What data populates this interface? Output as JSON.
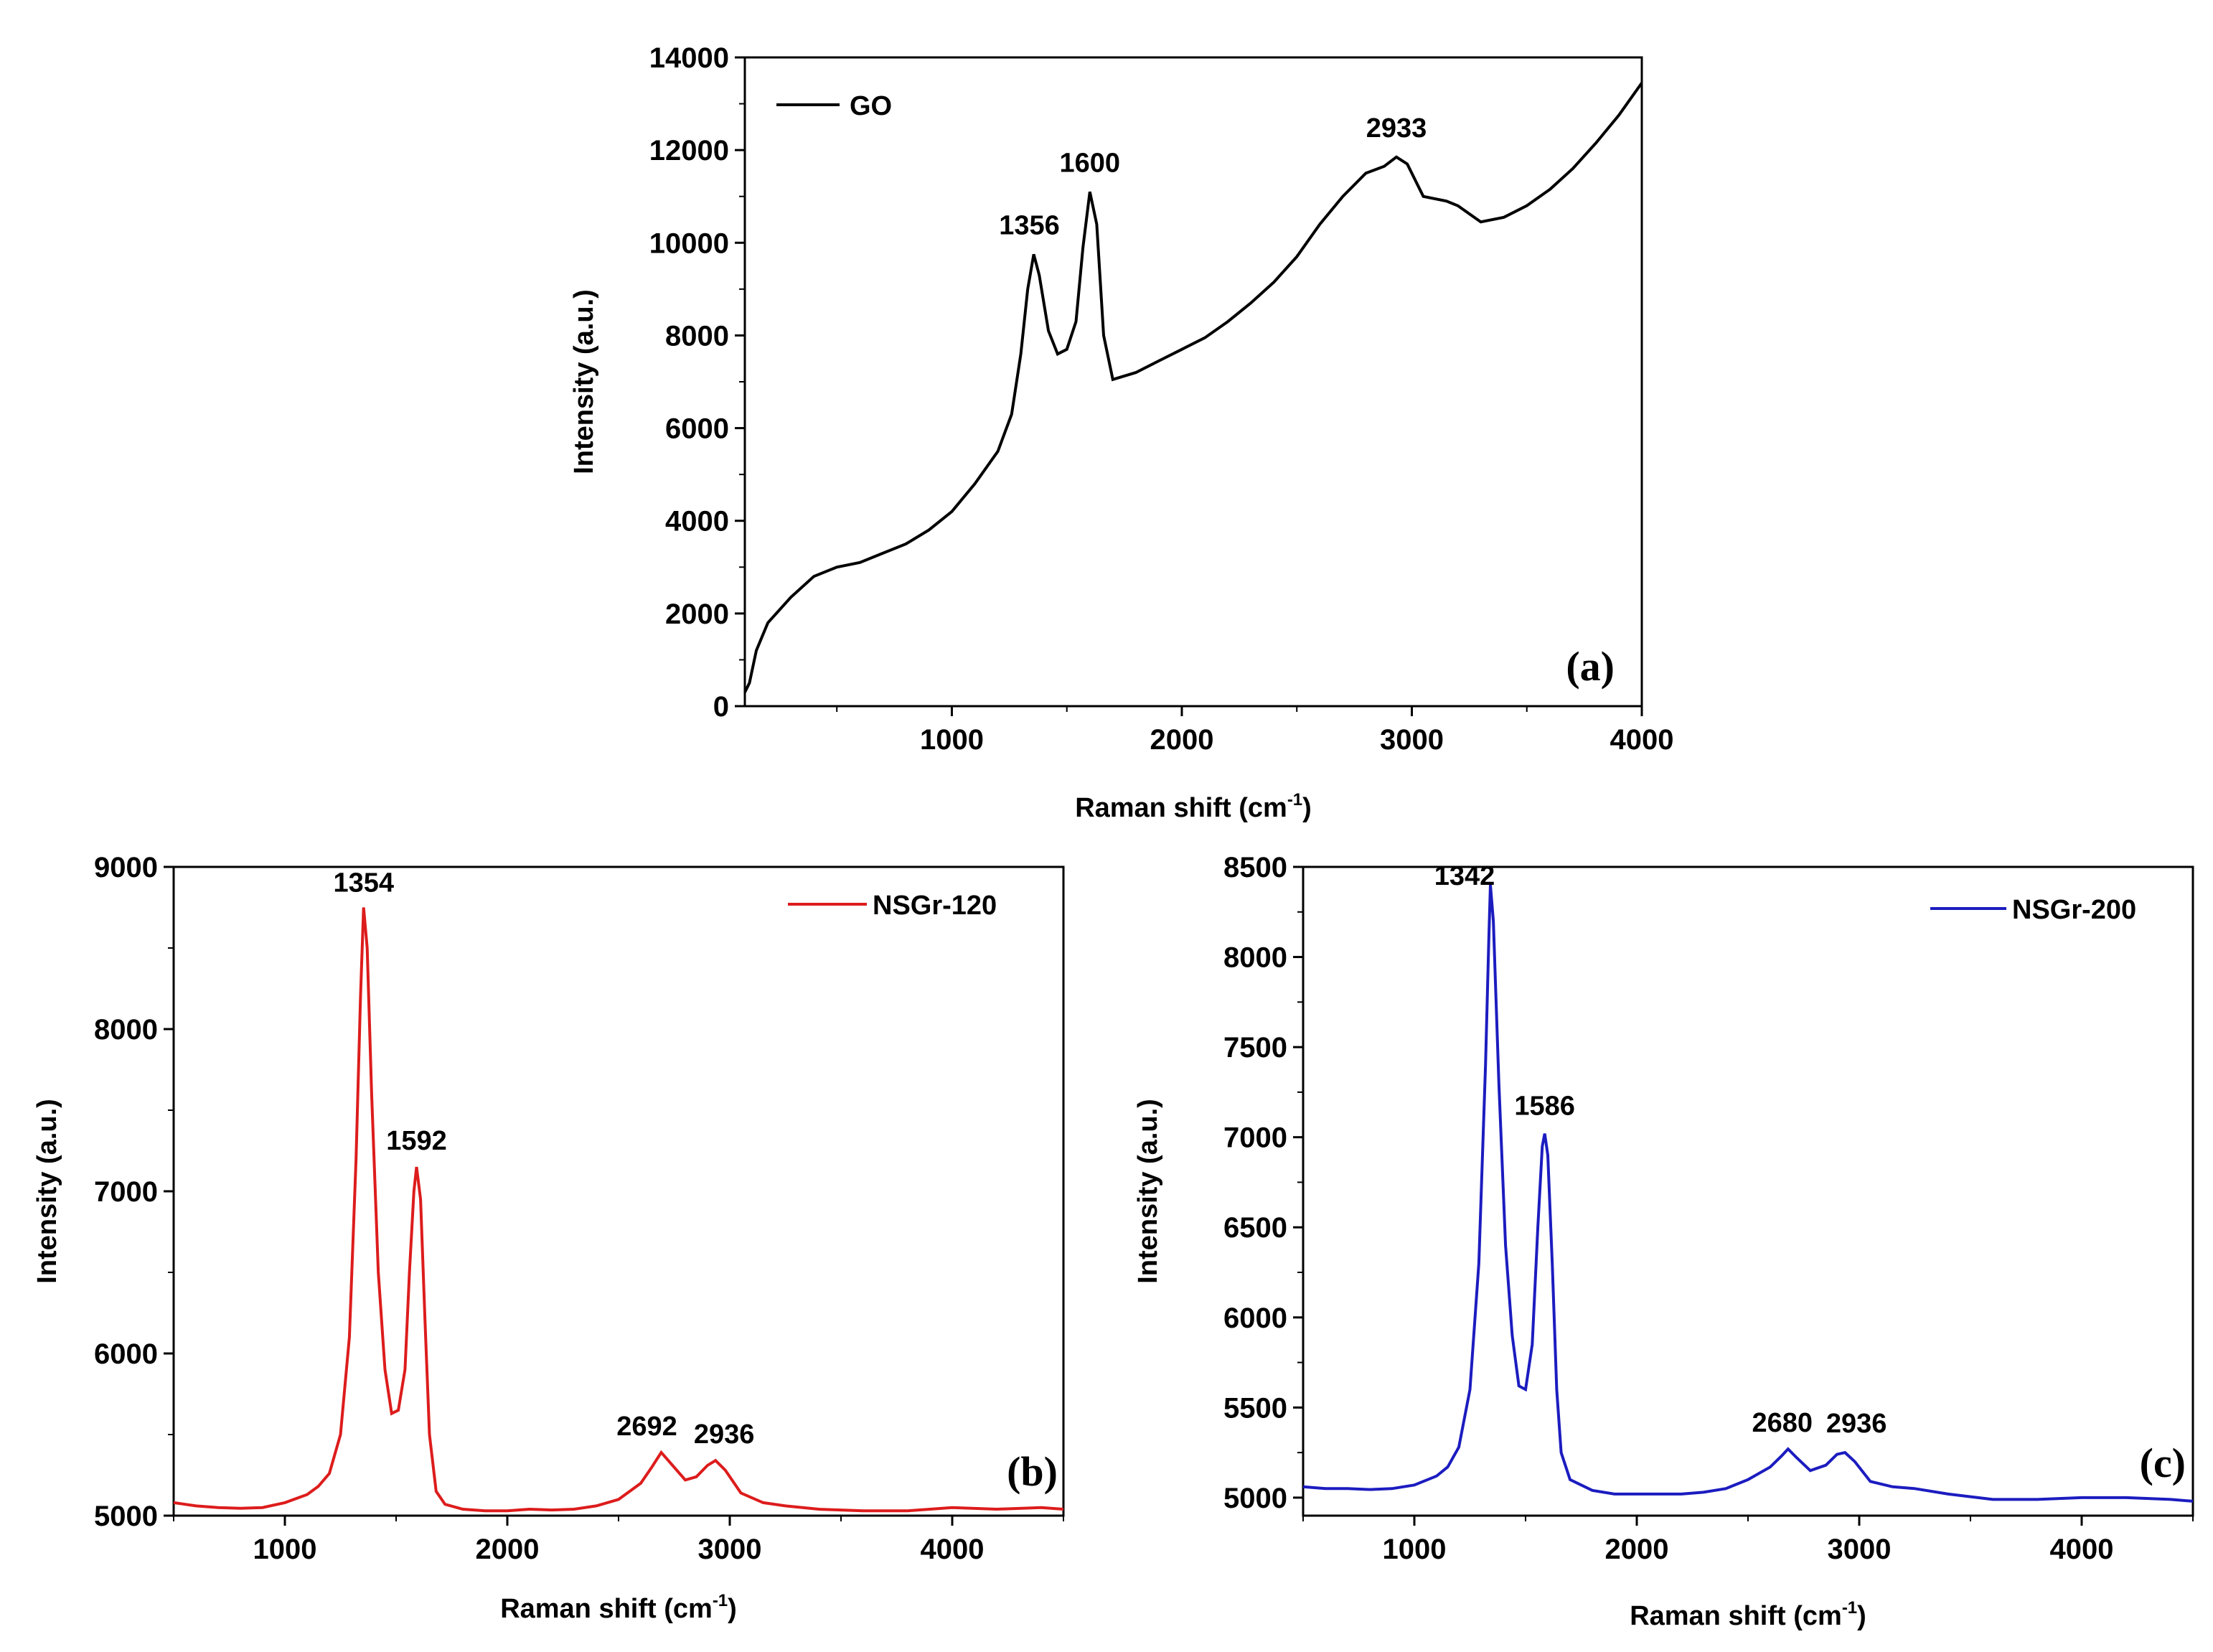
{
  "chart_data": [
    {
      "id": "a",
      "type": "line",
      "panel_label": "(a)",
      "title": "",
      "xlabel": "Raman shift (cm",
      "xlabel_sup": "-1",
      "xlabel_end": ")",
      "ylabel": "Intensity (a.u.)",
      "xlim": [
        100,
        4000
      ],
      "ylim": [
        0,
        14000
      ],
      "xticks": [
        1000,
        2000,
        3000,
        4000
      ],
      "yticks": [
        0,
        2000,
        4000,
        6000,
        8000,
        10000,
        12000,
        14000
      ],
      "legend_position": "top-left",
      "series": [
        {
          "name": "GO",
          "color": "#000000",
          "points": [
            [
              100,
              300
            ],
            [
              120,
              500
            ],
            [
              150,
              1200
            ],
            [
              200,
              1800
            ],
            [
              300,
              2350
            ],
            [
              400,
              2800
            ],
            [
              500,
              3000
            ],
            [
              600,
              3100
            ],
            [
              700,
              3300
            ],
            [
              800,
              3500
            ],
            [
              900,
              3800
            ],
            [
              1000,
              4200
            ],
            [
              1100,
              4800
            ],
            [
              1200,
              5500
            ],
            [
              1260,
              6300
            ],
            [
              1300,
              7600
            ],
            [
              1330,
              9000
            ],
            [
              1356,
              9750
            ],
            [
              1380,
              9300
            ],
            [
              1420,
              8100
            ],
            [
              1460,
              7600
            ],
            [
              1500,
              7700
            ],
            [
              1540,
              8300
            ],
            [
              1570,
              9900
            ],
            [
              1600,
              11100
            ],
            [
              1630,
              10400
            ],
            [
              1660,
              8000
            ],
            [
              1700,
              7050
            ],
            [
              1800,
              7200
            ],
            [
              1900,
              7450
            ],
            [
              2000,
              7700
            ],
            [
              2100,
              7950
            ],
            [
              2200,
              8300
            ],
            [
              2300,
              8700
            ],
            [
              2400,
              9150
            ],
            [
              2500,
              9700
            ],
            [
              2600,
              10400
            ],
            [
              2700,
              11000
            ],
            [
              2800,
              11500
            ],
            [
              2880,
              11650
            ],
            [
              2933,
              11850
            ],
            [
              2980,
              11700
            ],
            [
              3050,
              11000
            ],
            [
              3150,
              10900
            ],
            [
              3200,
              10800
            ],
            [
              3300,
              10450
            ],
            [
              3400,
              10550
            ],
            [
              3500,
              10800
            ],
            [
              3600,
              11150
            ],
            [
              3700,
              11600
            ],
            [
              3800,
              12150
            ],
            [
              3900,
              12750
            ],
            [
              4000,
              13450
            ]
          ]
        }
      ],
      "peaks": [
        {
          "x": 1356,
          "y": 9750,
          "label": "1356"
        },
        {
          "x": 1600,
          "y": 11100,
          "label": "1600"
        },
        {
          "x": 2933,
          "y": 11850,
          "label": "2933"
        }
      ]
    },
    {
      "id": "b",
      "type": "line",
      "panel_label": "(b)",
      "title": "",
      "xlabel": "Raman shift (cm",
      "xlabel_sup": "-1",
      "xlabel_end": ")",
      "ylabel": "Intensity (a.u.)",
      "xlim": [
        500,
        4500
      ],
      "ylim": [
        5000,
        9000
      ],
      "xticks": [
        1000,
        2000,
        3000,
        4000
      ],
      "yticks": [
        5000,
        6000,
        7000,
        8000,
        9000
      ],
      "legend_position": "top-right",
      "series": [
        {
          "name": "NSGr-120",
          "color": "#dd1c1c",
          "points": [
            [
              500,
              5080
            ],
            [
              600,
              5060
            ],
            [
              700,
              5050
            ],
            [
              800,
              5045
            ],
            [
              900,
              5050
            ],
            [
              1000,
              5080
            ],
            [
              1100,
              5130
            ],
            [
              1150,
              5180
            ],
            [
              1200,
              5260
            ],
            [
              1250,
              5500
            ],
            [
              1290,
              6100
            ],
            [
              1320,
              7200
            ],
            [
              1340,
              8200
            ],
            [
              1354,
              8750
            ],
            [
              1370,
              8500
            ],
            [
              1390,
              7600
            ],
            [
              1420,
              6500
            ],
            [
              1450,
              5900
            ],
            [
              1480,
              5630
            ],
            [
              1510,
              5650
            ],
            [
              1540,
              5900
            ],
            [
              1560,
              6500
            ],
            [
              1580,
              7000
            ],
            [
              1592,
              7150
            ],
            [
              1610,
              6950
            ],
            [
              1630,
              6200
            ],
            [
              1650,
              5500
            ],
            [
              1680,
              5150
            ],
            [
              1720,
              5070
            ],
            [
              1800,
              5040
            ],
            [
              1900,
              5030
            ],
            [
              2000,
              5030
            ],
            [
              2100,
              5040
            ],
            [
              2200,
              5035
            ],
            [
              2300,
              5040
            ],
            [
              2400,
              5060
            ],
            [
              2500,
              5100
            ],
            [
              2600,
              5200
            ],
            [
              2650,
              5300
            ],
            [
              2692,
              5390
            ],
            [
              2730,
              5330
            ],
            [
              2800,
              5220
            ],
            [
              2850,
              5240
            ],
            [
              2900,
              5310
            ],
            [
              2936,
              5340
            ],
            [
              2980,
              5280
            ],
            [
              3050,
              5140
            ],
            [
              3150,
              5080
            ],
            [
              3250,
              5060
            ],
            [
              3400,
              5040
            ],
            [
              3600,
              5030
            ],
            [
              3800,
              5030
            ],
            [
              4000,
              5050
            ],
            [
              4200,
              5040
            ],
            [
              4400,
              5050
            ],
            [
              4500,
              5040
            ]
          ]
        }
      ],
      "peaks": [
        {
          "x": 1354,
          "y": 8750,
          "label": "1354"
        },
        {
          "x": 1592,
          "y": 7150,
          "label": "1592"
        },
        {
          "x": 2692,
          "y": 5390,
          "label": "2692"
        },
        {
          "x": 2936,
          "y": 5340,
          "label": "2936"
        }
      ]
    },
    {
      "id": "c",
      "type": "line",
      "panel_label": "(c)",
      "title": "",
      "xlabel": "Raman shift (cm",
      "xlabel_sup": "-1",
      "xlabel_end": ")",
      "ylabel": "Intensity (a.u.)",
      "xlim": [
        500,
        4500
      ],
      "ylim": [
        4900,
        8500
      ],
      "xticks": [
        1000,
        2000,
        3000,
        4000
      ],
      "yticks": [
        5000,
        5500,
        6000,
        6500,
        7000,
        7500,
        8000,
        8500
      ],
      "legend_position": "top-right",
      "series": [
        {
          "name": "NSGr-200",
          "color": "#1c1cc0",
          "points": [
            [
              500,
              5060
            ],
            [
              600,
              5050
            ],
            [
              700,
              5050
            ],
            [
              800,
              5045
            ],
            [
              900,
              5050
            ],
            [
              1000,
              5070
            ],
            [
              1100,
              5120
            ],
            [
              1150,
              5170
            ],
            [
              1200,
              5280
            ],
            [
              1250,
              5600
            ],
            [
              1290,
              6300
            ],
            [
              1320,
              7400
            ],
            [
              1335,
              8100
            ],
            [
              1342,
              8400
            ],
            [
              1355,
              8200
            ],
            [
              1380,
              7300
            ],
            [
              1410,
              6400
            ],
            [
              1440,
              5900
            ],
            [
              1470,
              5620
            ],
            [
              1500,
              5600
            ],
            [
              1530,
              5850
            ],
            [
              1555,
              6500
            ],
            [
              1575,
              6950
            ],
            [
              1586,
              7020
            ],
            [
              1600,
              6900
            ],
            [
              1620,
              6300
            ],
            [
              1640,
              5600
            ],
            [
              1660,
              5250
            ],
            [
              1700,
              5100
            ],
            [
              1800,
              5040
            ],
            [
              1900,
              5020
            ],
            [
              2000,
              5020
            ],
            [
              2100,
              5020
            ],
            [
              2200,
              5020
            ],
            [
              2300,
              5030
            ],
            [
              2400,
              5050
            ],
            [
              2500,
              5100
            ],
            [
              2600,
              5170
            ],
            [
              2650,
              5230
            ],
            [
              2680,
              5270
            ],
            [
              2720,
              5220
            ],
            [
              2780,
              5150
            ],
            [
              2850,
              5180
            ],
            [
              2900,
              5240
            ],
            [
              2936,
              5250
            ],
            [
              2980,
              5200
            ],
            [
              3050,
              5090
            ],
            [
              3150,
              5060
            ],
            [
              3250,
              5050
            ],
            [
              3400,
              5020
            ],
            [
              3600,
              4990
            ],
            [
              3800,
              4990
            ],
            [
              4000,
              5000
            ],
            [
              4200,
              5000
            ],
            [
              4400,
              4990
            ],
            [
              4500,
              4980
            ]
          ]
        }
      ],
      "peaks": [
        {
          "x": 1342,
          "y": 8400,
          "label": "1342"
        },
        {
          "x": 1586,
          "y": 7020,
          "label": "1586"
        },
        {
          "x": 2680,
          "y": 5270,
          "label": "2680"
        },
        {
          "x": 2936,
          "y": 5250,
          "label": "2936"
        }
      ]
    }
  ]
}
